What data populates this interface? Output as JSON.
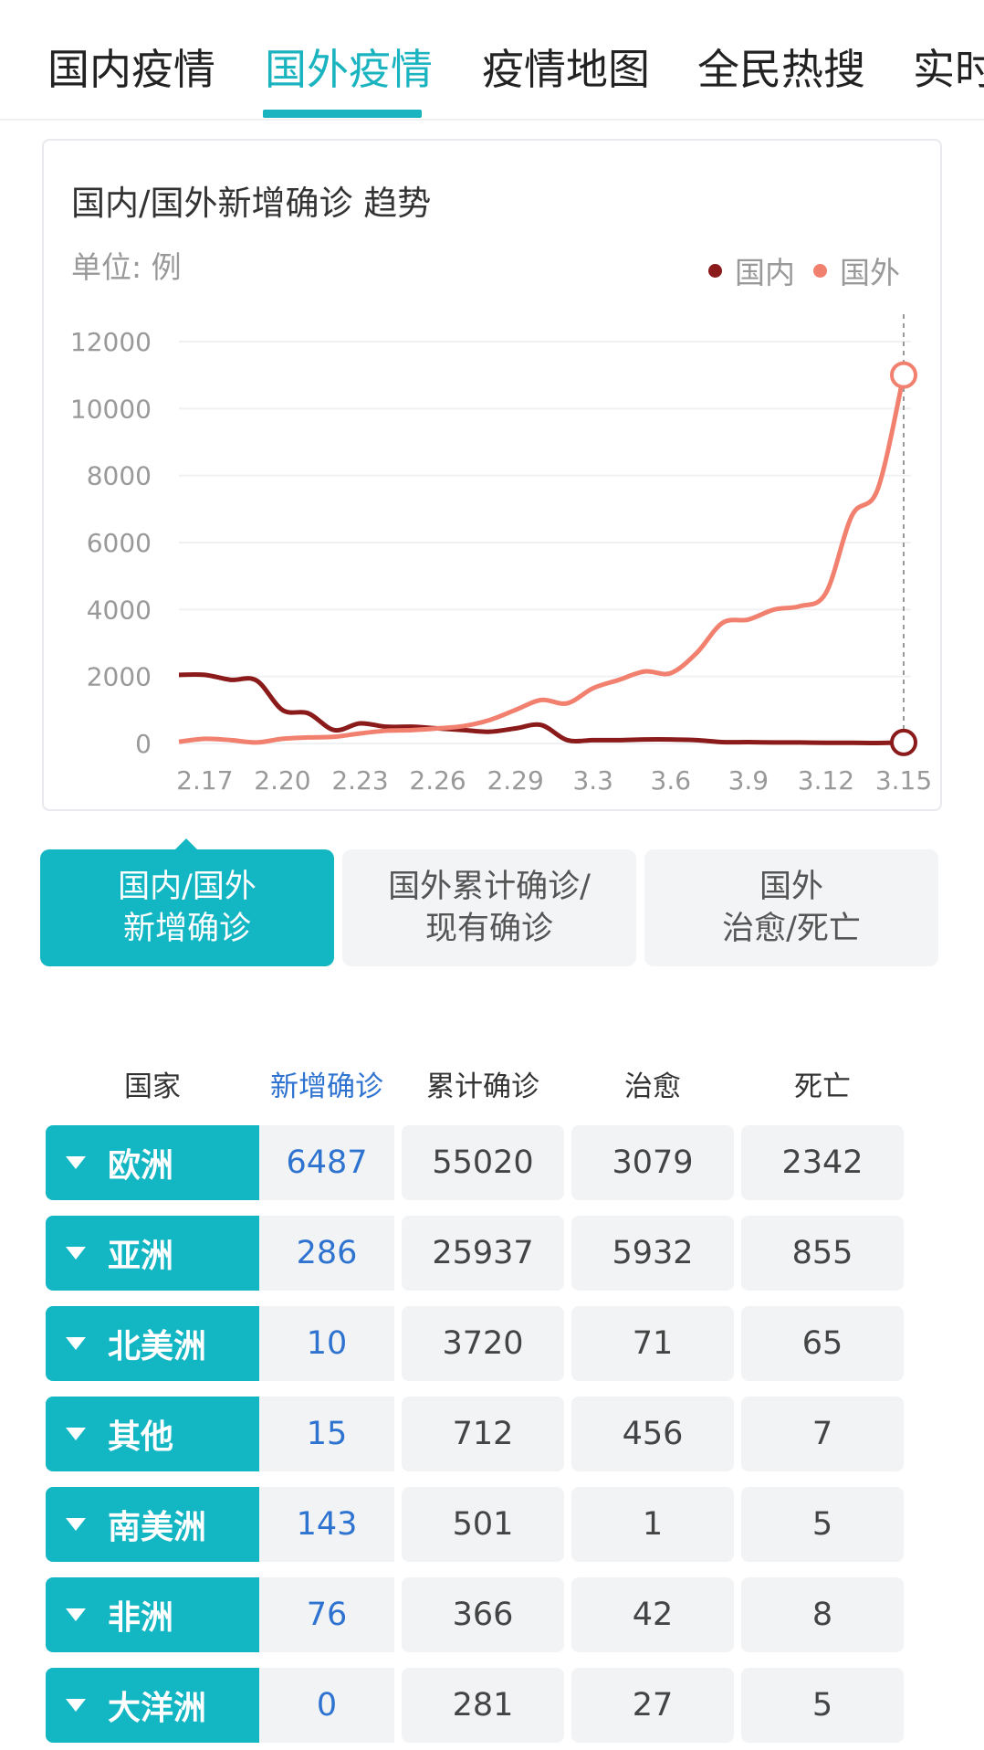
{
  "tabs": [
    {
      "label": "国内疫情"
    },
    {
      "label": "国外疫情"
    },
    {
      "label": "疫情地图"
    },
    {
      "label": "全民热搜"
    },
    {
      "label": "实时"
    }
  ],
  "card": {
    "title": "国内/国外新增确诊 趋势",
    "unit": "单位: 例",
    "legend": [
      {
        "label": "国内",
        "color": "#8b1a1a"
      },
      {
        "label": "国外",
        "color": "#f2806f"
      }
    ]
  },
  "chart_data": {
    "type": "line",
    "title": "国内/国外新增确诊 趋势",
    "ylabel": "单位: 例",
    "ylim": [
      0,
      12000
    ],
    "yticks": [
      "0",
      "2000",
      "4000",
      "6000",
      "8000",
      "10000",
      "12000"
    ],
    "xticks": [
      "2.17",
      "2.20",
      "2.23",
      "2.26",
      "2.29",
      "3.3",
      "3.6",
      "3.9",
      "3.12",
      "3.15"
    ],
    "x": [
      "2.16",
      "2.17",
      "2.18",
      "2.19",
      "2.20",
      "2.21",
      "2.22",
      "2.23",
      "2.24",
      "2.25",
      "2.26",
      "2.27",
      "2.28",
      "2.29",
      "3.1",
      "3.2",
      "3.3",
      "3.4",
      "3.5",
      "3.6",
      "3.7",
      "3.8",
      "3.9",
      "3.10",
      "3.11",
      "3.12",
      "3.13",
      "3.14",
      "3.15"
    ],
    "series": [
      {
        "name": "国内",
        "color": "#8b1a1a",
        "values": [
          2050,
          2050,
          1900,
          1880,
          1000,
          900,
          400,
          600,
          500,
          500,
          450,
          400,
          350,
          450,
          550,
          100,
          100,
          100,
          120,
          120,
          100,
          40,
          40,
          30,
          30,
          20,
          20,
          15,
          30
        ]
      },
      {
        "name": "国外",
        "color": "#f2806f",
        "values": [
          50,
          140,
          100,
          30,
          140,
          180,
          200,
          300,
          380,
          400,
          450,
          520,
          700,
          1000,
          1300,
          1200,
          1650,
          1900,
          2150,
          2100,
          2700,
          3600,
          3700,
          4000,
          4100,
          4500,
          6800,
          7600,
          11000
        ]
      }
    ],
    "grid": true,
    "legend": "top-right"
  },
  "sub_tabs": [
    {
      "label": "国内/国外\n新增确诊"
    },
    {
      "label": "国外累计确诊/\n现有确诊"
    },
    {
      "label": "国外\n治愈/死亡"
    }
  ],
  "table": {
    "headers": [
      "国家",
      "新增确诊",
      "累计确诊",
      "治愈",
      "死亡"
    ],
    "rows": [
      {
        "region": "欧洲",
        "new": "6487",
        "total": "55020",
        "cured": "3079",
        "dead": "2342"
      },
      {
        "region": "亚洲",
        "new": "286",
        "total": "25937",
        "cured": "5932",
        "dead": "855"
      },
      {
        "region": "北美洲",
        "new": "10",
        "total": "3720",
        "cured": "71",
        "dead": "65"
      },
      {
        "region": "其他",
        "new": "15",
        "total": "712",
        "cured": "456",
        "dead": "7"
      },
      {
        "region": "南美洲",
        "new": "143",
        "total": "501",
        "cured": "1",
        "dead": "5"
      },
      {
        "region": "非洲",
        "new": "76",
        "total": "366",
        "cured": "42",
        "dead": "8"
      },
      {
        "region": "大洋洲",
        "new": "0",
        "total": "281",
        "cured": "27",
        "dead": "5"
      }
    ]
  }
}
